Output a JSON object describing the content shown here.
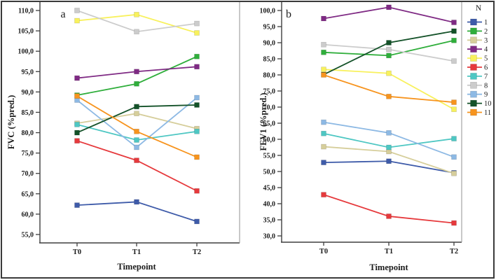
{
  "figure": {
    "description": "Two-panel line chart of lung function over time for 11 subjects",
    "panel_a_label": "a",
    "panel_b_label": "b"
  },
  "legend": {
    "title": "N",
    "entries": [
      {
        "label": "1",
        "color": "#3e5ba9"
      },
      {
        "label": "2",
        "color": "#2fae3b"
      },
      {
        "label": "3",
        "color": "#d6ce9b"
      },
      {
        "label": "4",
        "color": "#7f2a84"
      },
      {
        "label": "5",
        "color": "#f8f15d"
      },
      {
        "label": "6",
        "color": "#e6393c"
      },
      {
        "label": "7",
        "color": "#4ec7c3"
      },
      {
        "label": "8",
        "color": "#cccccc"
      },
      {
        "label": "9",
        "color": "#8db9e4"
      },
      {
        "label": "10",
        "color": "#145229"
      },
      {
        "label": "11",
        "color": "#f7941e"
      }
    ]
  },
  "chart_data": [
    {
      "type": "line",
      "panel_label": "a",
      "title": "",
      "xlabel": "Timepoint",
      "ylabel": "FVC (%pred.)",
      "categories": [
        "T0",
        "T1",
        "T2"
      ],
      "ylim": [
        55,
        110
      ],
      "ytick_step": 5,
      "decimal_separator": ",",
      "grid": false,
      "legend_position": "none",
      "series": [
        {
          "name": "1",
          "color": "#3e5ba9",
          "values": [
            62.2,
            63.0,
            58.2
          ]
        },
        {
          "name": "2",
          "color": "#2fae3b",
          "values": [
            89.2,
            92.0,
            98.7
          ]
        },
        {
          "name": "3",
          "color": "#d6ce9b",
          "values": [
            82.3,
            84.7,
            81.0
          ]
        },
        {
          "name": "4",
          "color": "#7f2a84",
          "values": [
            93.4,
            95.0,
            96.2
          ]
        },
        {
          "name": "5",
          "color": "#f8f15d",
          "values": [
            107.5,
            109.0,
            104.5
          ]
        },
        {
          "name": "6",
          "color": "#e6393c",
          "values": [
            78.0,
            73.2,
            65.7
          ]
        },
        {
          "name": "7",
          "color": "#4ec7c3",
          "values": [
            82.0,
            78.2,
            80.3
          ]
        },
        {
          "name": "8",
          "color": "#cccccc",
          "values": [
            110.0,
            104.8,
            106.8
          ]
        },
        {
          "name": "9",
          "color": "#8db9e4",
          "values": [
            88.0,
            76.4,
            88.6
          ]
        },
        {
          "name": "10",
          "color": "#145229",
          "values": [
            80.0,
            86.4,
            86.8
          ]
        },
        {
          "name": "11",
          "color": "#f7941e",
          "values": [
            89.0,
            80.3,
            74.0
          ]
        }
      ]
    },
    {
      "type": "line",
      "panel_label": "b",
      "title": "",
      "xlabel": "Timepoint",
      "ylabel": "FEV1 (%pred.)",
      "categories": [
        "T0",
        "T1",
        "T2"
      ],
      "ylim": [
        30,
        100
      ],
      "ytick_step": 5,
      "decimal_separator": ",",
      "grid": false,
      "legend_position": "right",
      "series": [
        {
          "name": "1",
          "color": "#3e5ba9",
          "values": [
            52.8,
            53.2,
            49.6
          ]
        },
        {
          "name": "2",
          "color": "#2fae3b",
          "values": [
            87.0,
            86.0,
            90.7
          ]
        },
        {
          "name": "3",
          "color": "#d6ce9b",
          "values": [
            57.7,
            56.2,
            49.4
          ]
        },
        {
          "name": "4",
          "color": "#7f2a84",
          "values": [
            97.5,
            101.0,
            96.3
          ]
        },
        {
          "name": "5",
          "color": "#f8f15d",
          "values": [
            81.7,
            80.5,
            69.3
          ]
        },
        {
          "name": "6",
          "color": "#e6393c",
          "values": [
            42.8,
            36.1,
            34.0
          ]
        },
        {
          "name": "7",
          "color": "#4ec7c3",
          "values": [
            61.8,
            57.5,
            60.2
          ]
        },
        {
          "name": "8",
          "color": "#cccccc",
          "values": [
            89.4,
            87.9,
            84.3
          ]
        },
        {
          "name": "9",
          "color": "#8db9e4",
          "values": [
            65.3,
            62.0,
            54.5
          ]
        },
        {
          "name": "10",
          "color": "#145229",
          "values": [
            80.1,
            90.0,
            93.6
          ]
        },
        {
          "name": "11",
          "color": "#f7941e",
          "values": [
            80.0,
            73.3,
            71.5
          ]
        }
      ]
    }
  ]
}
